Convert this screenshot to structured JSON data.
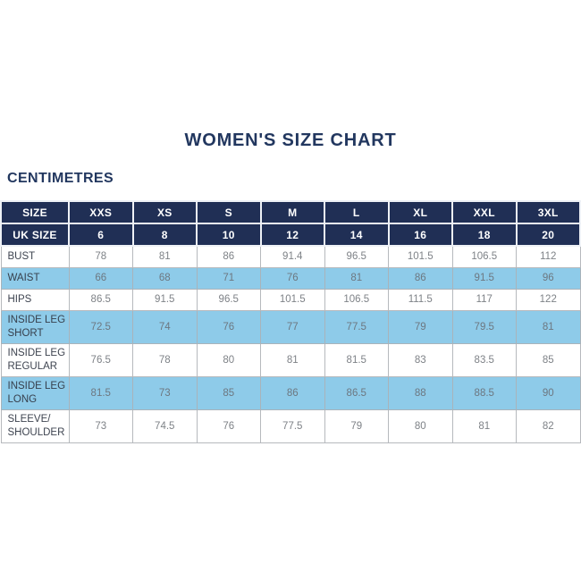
{
  "page": {
    "title": "WOMEN'S SIZE CHART",
    "unit_label": "CENTIMETRES"
  },
  "colors": {
    "navy_header_bg": "#202f55",
    "navy_text": "#22375f",
    "light_blue_row": "#8ecbe9",
    "white_row": "#ffffff",
    "data_text": "#7e8287",
    "grid_border": "#b6b9bd",
    "header_separator": "#eef1f6"
  },
  "chart_data": {
    "type": "table",
    "title": "WOMEN'S SIZE CHART",
    "unit": "CENTIMETRES",
    "columns": [
      "SIZE",
      "XXS",
      "XS",
      "S",
      "M",
      "L",
      "XL",
      "XXL",
      "3XL"
    ],
    "rows": [
      {
        "label": "UK SIZE",
        "style": "header",
        "values": [
          "6",
          "8",
          "10",
          "12",
          "14",
          "16",
          "18",
          "20"
        ]
      },
      {
        "label": "BUST",
        "style": "white",
        "values": [
          "78",
          "81",
          "86",
          "91.4",
          "96.5",
          "101.5",
          "106.5",
          "112"
        ]
      },
      {
        "label": "WAIST",
        "style": "blue",
        "values": [
          "66",
          "68",
          "71",
          "76",
          "81",
          "86",
          "91.5",
          "96"
        ]
      },
      {
        "label": "HIPS",
        "style": "white",
        "values": [
          "86.5",
          "91.5",
          "96.5",
          "101.5",
          "106.5",
          "111.5",
          "117",
          "122"
        ]
      },
      {
        "label": "INSIDE LEG\nSHORT",
        "style": "blue",
        "values": [
          "72.5",
          "74",
          "76",
          "77",
          "77.5",
          "79",
          "79.5",
          "81"
        ]
      },
      {
        "label": "INSIDE LEG\nREGULAR",
        "style": "white",
        "values": [
          "76.5",
          "78",
          "80",
          "81",
          "81.5",
          "83",
          "83.5",
          "85"
        ]
      },
      {
        "label": "INSIDE LEG\nLONG",
        "style": "blue",
        "values": [
          "81.5",
          "73",
          "85",
          "86",
          "86.5",
          "88",
          "88.5",
          "90"
        ]
      },
      {
        "label": "SLEEVE/\nSHOULDER",
        "style": "white",
        "values": [
          "73",
          "74.5",
          "76",
          "77.5",
          "79",
          "80",
          "81",
          "82"
        ]
      }
    ]
  }
}
